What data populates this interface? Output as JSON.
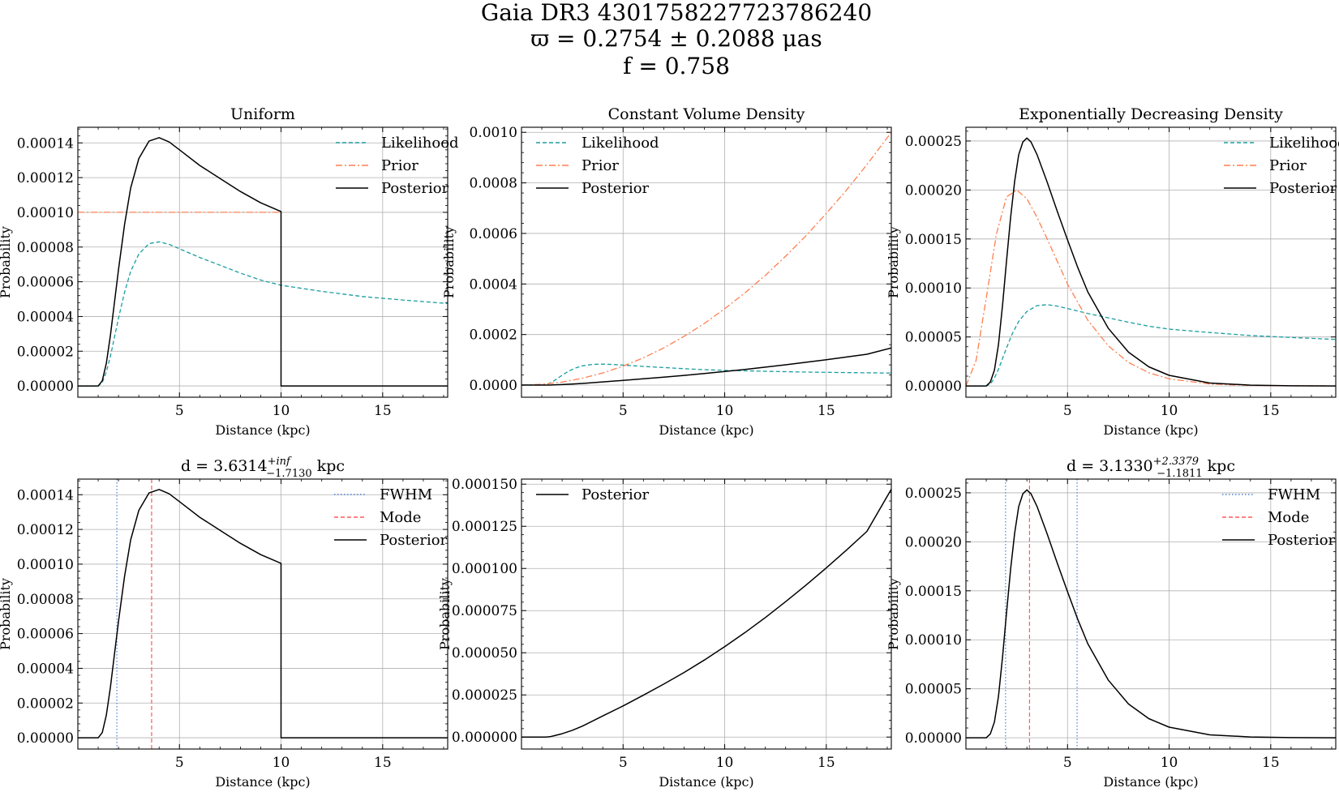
{
  "figure": {
    "title_lines": [
      "Gaia DR3 4301758227723786240",
      "ϖ = 0.2754 ± 0.2088 μas",
      "f = 0.758"
    ]
  },
  "colors": {
    "likelihood": "#1a9da0",
    "prior": "#ff7f50",
    "posterior": "#000000",
    "fwhm": "#4a7fd6",
    "mode": "#ff5a5a",
    "grid": "#b0b0b0"
  },
  "chart_data": [
    {
      "type": "line",
      "title": "Uniform",
      "xlabel": "Distance (kpc)",
      "ylabel": "Probability",
      "xlim": [
        0,
        18.2
      ],
      "ylim": [
        -6.5e-06,
        0.000149
      ],
      "xticks": [
        5,
        10,
        15
      ],
      "yticks": [
        0,
        2e-05,
        4e-05,
        6e-05,
        8e-05,
        0.0001,
        0.00012,
        0.00014
      ],
      "ytick_labels": [
        "0.00000",
        "0.00002",
        "0.00004",
        "0.00006",
        "0.00008",
        "0.00010",
        "0.00012",
        "0.00014"
      ],
      "grid": true,
      "legend": "top-right",
      "series": [
        {
          "name": "Likelihood",
          "role": "likelihood",
          "style": "dashed",
          "x": [
            0,
            1,
            1.2,
            1.4,
            1.6,
            1.8,
            2.0,
            2.3,
            2.6,
            3.0,
            3.5,
            4.0,
            4.5,
            5,
            6,
            7,
            8,
            9,
            10,
            12,
            14,
            16,
            18.2
          ],
          "y": [
            0,
            0,
            2e-06,
            8e-06,
            1.7e-05,
            2.8e-05,
            3.9e-05,
            5.4e-05,
            6.6e-05,
            7.6e-05,
            8.2e-05,
            8.3e-05,
            8.15e-05,
            7.9e-05,
            7.4e-05,
            6.95e-05,
            6.5e-05,
            6.1e-05,
            5.8e-05,
            5.45e-05,
            5.15e-05,
            4.95e-05,
            4.75e-05
          ]
        },
        {
          "name": "Prior",
          "role": "prior",
          "style": "dashdot",
          "x": [
            0,
            10
          ],
          "y": [
            0.0001,
            0.0001
          ]
        },
        {
          "name": "Posterior",
          "role": "posterior",
          "style": "solid",
          "x": [
            0,
            1,
            1.2,
            1.4,
            1.6,
            1.8,
            2.0,
            2.3,
            2.6,
            3.0,
            3.5,
            4.0,
            4.5,
            5,
            6,
            7,
            8,
            9,
            10,
            10,
            18.2
          ],
          "y": [
            0,
            0,
            3e-06,
            1.3e-05,
            2.9e-05,
            4.8e-05,
            6.7e-05,
            9.3e-05,
            0.000114,
            0.000131,
            0.000141,
            0.000143,
            0.0001405,
            0.000136,
            0.000127,
            0.0001195,
            0.000112,
            0.0001055,
            0.0001005,
            0,
            0
          ]
        }
      ]
    },
    {
      "type": "line",
      "title": "Constant Volume Density",
      "xlabel": "Distance (kpc)",
      "ylabel": "Probability",
      "xlim": [
        0,
        18.2
      ],
      "ylim": [
        -4.8e-05,
        0.00102
      ],
      "xticks": [
        5,
        10,
        15
      ],
      "yticks": [
        0,
        0.0002,
        0.0004,
        0.0006,
        0.0008,
        0.001
      ],
      "ytick_labels": [
        "0.0000",
        "0.0002",
        "0.0004",
        "0.0006",
        "0.0008",
        "0.0010"
      ],
      "grid": true,
      "legend": "top-left",
      "series": [
        {
          "name": "Likelihood",
          "role": "likelihood",
          "style": "dashed",
          "x": [
            0,
            1,
            1.2,
            1.4,
            1.6,
            1.8,
            2.0,
            2.3,
            2.6,
            3.0,
            3.5,
            4.0,
            4.5,
            5,
            6,
            7,
            8,
            9,
            10,
            12,
            14,
            16,
            18.2
          ],
          "y": [
            0,
            0,
            2e-06,
            8e-06,
            1.7e-05,
            2.8e-05,
            3.9e-05,
            5.4e-05,
            6.6e-05,
            7.6e-05,
            8.2e-05,
            8.3e-05,
            8.15e-05,
            7.9e-05,
            7.4e-05,
            6.95e-05,
            6.5e-05,
            6.1e-05,
            5.8e-05,
            5.45e-05,
            5.15e-05,
            4.95e-05,
            4.75e-05
          ]
        },
        {
          "name": "Prior",
          "role": "prior",
          "style": "dashdot",
          "x": [
            0,
            1,
            2,
            3,
            4,
            5,
            6,
            7,
            8,
            9,
            10,
            11,
            12,
            13,
            14,
            15,
            16,
            17,
            18.2
          ],
          "y": [
            0,
            3e-06,
            1.2e-05,
            2.7e-05,
            4.8e-05,
            7.5e-05,
            0.000108,
            0.000147,
            0.000193,
            0.000244,
            0.000302,
            0.000365,
            0.000434,
            0.00051,
            0.000591,
            0.000679,
            0.000772,
            0.000872,
            0.001
          ]
        },
        {
          "name": "Posterior",
          "role": "posterior",
          "style": "solid",
          "x": [
            0,
            1.2,
            1.4,
            1.6,
            2,
            2.5,
            3,
            4,
            5,
            6,
            7,
            8,
            9,
            10,
            11,
            12,
            13,
            14,
            15,
            16,
            17,
            18.2
          ],
          "y": [
            0,
            0,
            2e-07,
            8e-07,
            2e-06,
            4e-06,
            6.5e-06,
            1.25e-05,
            1.85e-05,
            2.48e-05,
            3.14e-05,
            3.83e-05,
            4.57e-05,
            5.36e-05,
            6.2e-05,
            7.09e-05,
            8.03e-05,
            9.01e-05,
            0.0001003,
            0.000111,
            0.000122,
            0.000147
          ]
        }
      ]
    },
    {
      "type": "line",
      "title": "Exponentially Decreasing Density",
      "xlabel": "Distance (kpc)",
      "ylabel": "Probability",
      "xlim": [
        0,
        18.2
      ],
      "ylim": [
        -1.15e-05,
        0.000264
      ],
      "xticks": [
        5,
        10,
        15
      ],
      "yticks": [
        0,
        5e-05,
        0.0001,
        0.00015,
        0.0002,
        0.00025
      ],
      "ytick_labels": [
        "0.00000",
        "0.00005",
        "0.00010",
        "0.00015",
        "0.00020",
        "0.00025"
      ],
      "grid": true,
      "legend": "top-right",
      "series": [
        {
          "name": "Likelihood",
          "role": "likelihood",
          "style": "dashed",
          "x": [
            0,
            1,
            1.2,
            1.4,
            1.6,
            1.8,
            2.0,
            2.3,
            2.6,
            3.0,
            3.5,
            4.0,
            4.5,
            5,
            6,
            7,
            8,
            9,
            10,
            12,
            14,
            16,
            18.2
          ],
          "y": [
            0,
            0,
            2e-06,
            8e-06,
            1.7e-05,
            2.8e-05,
            3.9e-05,
            5.4e-05,
            6.6e-05,
            7.6e-05,
            8.2e-05,
            8.3e-05,
            8.15e-05,
            7.9e-05,
            7.4e-05,
            6.95e-05,
            6.5e-05,
            6.1e-05,
            5.8e-05,
            5.45e-05,
            5.15e-05,
            4.95e-05,
            4.75e-05
          ]
        },
        {
          "name": "Prior",
          "role": "prior",
          "style": "dashdot",
          "x": [
            0,
            0.5,
            1,
            1.5,
            2,
            2.5,
            3,
            3.5,
            4,
            5,
            6,
            7,
            8,
            9,
            10,
            12,
            14,
            16,
            18.2
          ],
          "y": [
            0,
            2.6e-05,
            9e-05,
            0.000155,
            0.000193,
            0.0002,
            0.000191,
            0.000172,
            0.00015,
            0.000104,
            6.7e-05,
            4.1e-05,
            2.4e-05,
            1.35e-05,
            7.3e-06,
            2e-06,
            5e-07,
            1e-07,
            0
          ]
        },
        {
          "name": "Posterior",
          "role": "posterior",
          "style": "solid",
          "x": [
            0,
            1,
            1.2,
            1.4,
            1.6,
            1.8,
            2.0,
            2.2,
            2.4,
            2.6,
            2.8,
            3.0,
            3.2,
            3.5,
            4.0,
            4.5,
            5,
            5.5,
            6,
            7,
            8,
            9,
            10,
            12,
            14,
            16,
            18.2
          ],
          "y": [
            0,
            0,
            4e-06,
            1.6e-05,
            4.2e-05,
            8.2e-05,
            0.000128,
            0.000172,
            0.000209,
            0.000236,
            0.000249,
            0.000253,
            0.000249,
            0.000236,
            0.000208,
            0.000178,
            0.000149,
            0.000121,
            9.6e-05,
            5.9e-05,
            3.45e-05,
            1.95e-05,
            1.08e-05,
            3e-06,
            8e-07,
            2e-07,
            0
          ]
        }
      ]
    },
    {
      "type": "line",
      "title": "d = 3.6314",
      "title_sup": "+inf",
      "title_sub": "−1.7130",
      "title_unit": " kpc",
      "xlabel": "Distance (kpc)",
      "ylabel": "Probability",
      "xlim": [
        0,
        18.2
      ],
      "ylim": [
        -6.5e-06,
        0.000149
      ],
      "xticks": [
        5,
        10,
        15
      ],
      "yticks": [
        0,
        2e-05,
        4e-05,
        6e-05,
        8e-05,
        0.0001,
        0.00012,
        0.00014
      ],
      "ytick_labels": [
        "0.00000",
        "0.00002",
        "0.00004",
        "0.00006",
        "0.00008",
        "0.00010",
        "0.00012",
        "0.00014"
      ],
      "grid": true,
      "legend": "top-right",
      "vlines": [
        {
          "name": "FWHM",
          "role": "fwhm",
          "style": "dotted",
          "x": [
            1.92
          ]
        },
        {
          "name": "Mode",
          "role": "mode",
          "style": "dashed",
          "x": [
            3.63
          ]
        }
      ],
      "series": [
        {
          "name": "Posterior",
          "role": "posterior",
          "style": "solid",
          "x": [
            0,
            1,
            1.2,
            1.4,
            1.6,
            1.8,
            2.0,
            2.3,
            2.6,
            3.0,
            3.5,
            4.0,
            4.5,
            5,
            6,
            7,
            8,
            9,
            10,
            10,
            18.2
          ],
          "y": [
            0,
            0,
            3e-06,
            1.3e-05,
            2.9e-05,
            4.8e-05,
            6.7e-05,
            9.3e-05,
            0.000114,
            0.000131,
            0.000141,
            0.000143,
            0.0001405,
            0.000136,
            0.000127,
            0.0001195,
            0.000112,
            0.0001055,
            0.0001005,
            0,
            0
          ]
        }
      ]
    },
    {
      "type": "line",
      "title": "",
      "xlabel": "Distance (kpc)",
      "ylabel": "Probability",
      "xlim": [
        0,
        18.2
      ],
      "ylim": [
        -7.1e-06,
        0.000153
      ],
      "xticks": [
        5,
        10,
        15
      ],
      "yticks": [
        0,
        2.5e-05,
        5e-05,
        7.5e-05,
        0.0001,
        0.000125,
        0.00015
      ],
      "ytick_labels": [
        "0.000000",
        "0.000025",
        "0.000050",
        "0.000075",
        "0.000100",
        "0.000125",
        "0.000150"
      ],
      "grid": true,
      "legend": "top-left",
      "series": [
        {
          "name": "Posterior",
          "role": "posterior",
          "style": "solid",
          "x": [
            0,
            1.2,
            1.4,
            1.6,
            2,
            2.5,
            3,
            4,
            5,
            6,
            7,
            8,
            9,
            10,
            11,
            12,
            13,
            14,
            15,
            16,
            17,
            18.2
          ],
          "y": [
            0,
            0,
            2e-07,
            8e-07,
            2e-06,
            4e-06,
            6.5e-06,
            1.25e-05,
            1.85e-05,
            2.48e-05,
            3.14e-05,
            3.83e-05,
            4.57e-05,
            5.36e-05,
            6.2e-05,
            7.09e-05,
            8.03e-05,
            9.01e-05,
            0.0001003,
            0.000111,
            0.000122,
            0.000147
          ]
        }
      ]
    },
    {
      "type": "line",
      "title": "d = 3.1330",
      "title_sup": "+2.3379",
      "title_sub": "−1.1811",
      "title_unit": " kpc",
      "xlabel": "Distance (kpc)",
      "ylabel": "Probability",
      "xlim": [
        0,
        18.2
      ],
      "ylim": [
        -1.15e-05,
        0.000264
      ],
      "xticks": [
        5,
        10,
        15
      ],
      "yticks": [
        0,
        5e-05,
        0.0001,
        0.00015,
        0.0002,
        0.00025
      ],
      "ytick_labels": [
        "0.00000",
        "0.00005",
        "0.00010",
        "0.00015",
        "0.00020",
        "0.00025"
      ],
      "grid": true,
      "legend": "top-right",
      "vlines": [
        {
          "name": "FWHM",
          "role": "fwhm",
          "style": "dotted",
          "x": [
            1.95,
            5.47
          ]
        },
        {
          "name": "Mode",
          "role": "mode",
          "style": "dashed",
          "x": [
            3.13
          ]
        }
      ],
      "series": [
        {
          "name": "Posterior",
          "role": "posterior",
          "style": "solid",
          "x": [
            0,
            1,
            1.2,
            1.4,
            1.6,
            1.8,
            2.0,
            2.2,
            2.4,
            2.6,
            2.8,
            3.0,
            3.2,
            3.5,
            4.0,
            4.5,
            5,
            5.5,
            6,
            7,
            8,
            9,
            10,
            12,
            14,
            16,
            18.2
          ],
          "y": [
            0,
            0,
            4e-06,
            1.6e-05,
            4.2e-05,
            8.2e-05,
            0.000128,
            0.000172,
            0.000209,
            0.000236,
            0.000249,
            0.000253,
            0.000249,
            0.000236,
            0.000208,
            0.000178,
            0.000149,
            0.000121,
            9.6e-05,
            5.9e-05,
            3.45e-05,
            1.95e-05,
            1.08e-05,
            3e-06,
            8e-07,
            2e-07,
            0
          ]
        }
      ]
    }
  ]
}
